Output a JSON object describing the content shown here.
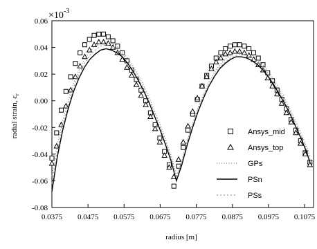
{
  "chart_data": {
    "type": "scatter",
    "scale_label": "×10",
    "scale_exponent": "-3",
    "xlabel": "radius [m]",
    "ylabel": "radial strain, ε",
    "ylabel_subscript": "r",
    "xlim": [
      0.0375,
      0.11
    ],
    "ylim": [
      -0.08,
      0.06
    ],
    "x_ticks": [
      "0.0375",
      "0.0475",
      "0.0575",
      "0.0675",
      "0.0775",
      "0.0875",
      "0.0975",
      "0.1075"
    ],
    "y_ticks": [
      "0.06",
      "0.04",
      "0.02",
      "0.00",
      "-0.02",
      "-0.04",
      "-0.06",
      "-0.08"
    ],
    "x_tick_values": [
      0.0375,
      0.0475,
      0.0575,
      0.0675,
      0.0775,
      0.0875,
      0.0975,
      0.1075
    ],
    "y_tick_values": [
      0.06,
      0.04,
      0.02,
      0.0,
      -0.02,
      -0.04,
      -0.06,
      -0.08
    ],
    "legend_position": "center-right",
    "series": [
      {
        "name": "Ansys_mid",
        "marker": "square",
        "x": [
          0.0375,
          0.0388,
          0.0401,
          0.0414,
          0.0427,
          0.044,
          0.0453,
          0.0466,
          0.0479,
          0.0492,
          0.0505,
          0.0518,
          0.0531,
          0.0544,
          0.0557,
          0.057,
          0.0583,
          0.0596,
          0.0609,
          0.0622,
          0.0635,
          0.0648,
          0.0661,
          0.0674,
          0.0687,
          0.07,
          0.0713,
          0.0726,
          0.0739,
          0.0752,
          0.0765,
          0.0778,
          0.0791,
          0.0804,
          0.0817,
          0.083,
          0.0843,
          0.0856,
          0.0869,
          0.0882,
          0.0895,
          0.0908,
          0.0921,
          0.0934,
          0.0947,
          0.096,
          0.0973,
          0.0986,
          0.0999,
          0.1012,
          0.1025,
          0.1038,
          0.1051,
          0.1064,
          0.1077,
          0.109
        ],
        "values": [
          -0.043,
          -0.024,
          -0.007,
          0.007,
          0.018,
          0.028,
          0.036,
          0.042,
          0.046,
          0.049,
          0.05,
          0.05,
          0.048,
          0.045,
          0.041,
          0.036,
          0.03,
          0.023,
          0.016,
          0.008,
          0.0,
          -0.009,
          -0.018,
          -0.028,
          -0.038,
          -0.048,
          -0.064,
          -0.049,
          -0.035,
          -0.022,
          -0.01,
          0.001,
          0.011,
          0.019,
          0.026,
          0.032,
          0.036,
          0.039,
          0.041,
          0.042,
          0.042,
          0.041,
          0.039,
          0.036,
          0.032,
          0.027,
          0.021,
          0.015,
          0.008,
          0.001,
          -0.006,
          -0.014,
          -0.022,
          -0.03,
          -0.039,
          -0.046
        ]
      },
      {
        "name": "Ansys_top",
        "marker": "triangle",
        "x": [
          0.0375,
          0.0388,
          0.0401,
          0.0414,
          0.0427,
          0.044,
          0.0453,
          0.0466,
          0.0479,
          0.0492,
          0.0505,
          0.0518,
          0.0531,
          0.0544,
          0.0557,
          0.057,
          0.0583,
          0.0596,
          0.0609,
          0.0622,
          0.0635,
          0.0648,
          0.0661,
          0.0674,
          0.0687,
          0.07,
          0.0713,
          0.0726,
          0.0739,
          0.0752,
          0.0765,
          0.0778,
          0.0791,
          0.0804,
          0.0817,
          0.083,
          0.0843,
          0.0856,
          0.0869,
          0.0882,
          0.0895,
          0.0908,
          0.0921,
          0.0934,
          0.0947,
          0.096,
          0.0973,
          0.0986,
          0.0999,
          0.1012,
          0.1025,
          0.1038,
          0.1051,
          0.1064,
          0.1077,
          0.109
        ],
        "values": [
          -0.047,
          -0.034,
          -0.018,
          -0.004,
          0.008,
          0.018,
          0.026,
          0.033,
          0.038,
          0.042,
          0.044,
          0.044,
          0.043,
          0.04,
          0.036,
          0.031,
          0.025,
          0.019,
          0.012,
          0.004,
          -0.003,
          -0.012,
          -0.021,
          -0.031,
          -0.041,
          -0.05,
          -0.057,
          -0.044,
          -0.031,
          -0.019,
          -0.008,
          0.002,
          0.011,
          0.018,
          0.024,
          0.029,
          0.032,
          0.035,
          0.036,
          0.037,
          0.037,
          0.036,
          0.034,
          0.031,
          0.027,
          0.023,
          0.017,
          0.011,
          0.005,
          -0.002,
          -0.009,
          -0.016,
          -0.024,
          -0.032,
          -0.04,
          -0.048
        ]
      },
      {
        "name": "GPs",
        "marker": "dotted-line",
        "x": [
          0.0375,
          0.039,
          0.0405,
          0.042,
          0.0435,
          0.045,
          0.0465,
          0.048,
          0.0495,
          0.051,
          0.0525,
          0.054,
          0.0555,
          0.057,
          0.0585,
          0.06,
          0.0615,
          0.063,
          0.0645,
          0.066,
          0.0675,
          0.069,
          0.0705,
          0.072,
          0.0735,
          0.075,
          0.0765,
          0.078,
          0.0795,
          0.081,
          0.0825,
          0.084,
          0.0855,
          0.087,
          0.0885,
          0.09,
          0.0915,
          0.093,
          0.0945,
          0.096,
          0.0975,
          0.099,
          0.1005,
          0.102,
          0.1035,
          0.105,
          0.1065,
          0.108,
          0.109
        ],
        "values": [
          -0.056,
          -0.033,
          -0.015,
          0.0,
          0.013,
          0.023,
          0.031,
          0.037,
          0.041,
          0.043,
          0.044,
          0.043,
          0.041,
          0.037,
          0.032,
          0.026,
          0.019,
          0.011,
          0.002,
          -0.008,
          -0.018,
          -0.029,
          -0.041,
          -0.056,
          -0.045,
          -0.03,
          -0.017,
          -0.005,
          0.005,
          0.014,
          0.021,
          0.027,
          0.031,
          0.034,
          0.036,
          0.037,
          0.036,
          0.034,
          0.031,
          0.027,
          0.022,
          0.016,
          0.009,
          0.002,
          -0.006,
          -0.015,
          -0.024,
          -0.034,
          -0.041
        ]
      },
      {
        "name": "PSn",
        "marker": "solid-line",
        "x": [
          0.0375,
          0.039,
          0.0405,
          0.042,
          0.0435,
          0.045,
          0.0465,
          0.048,
          0.0495,
          0.051,
          0.0525,
          0.054,
          0.0555,
          0.057,
          0.0585,
          0.06,
          0.0615,
          0.063,
          0.0645,
          0.066,
          0.0675,
          0.069,
          0.0705,
          0.072,
          0.0735,
          0.075,
          0.0765,
          0.078,
          0.0795,
          0.081,
          0.0825,
          0.084,
          0.0855,
          0.087,
          0.0885,
          0.09,
          0.0915,
          0.093,
          0.0945,
          0.096,
          0.0975,
          0.099,
          0.1005,
          0.102,
          0.1035,
          0.105,
          0.1065,
          0.108,
          0.109
        ],
        "values": [
          -0.068,
          -0.042,
          -0.022,
          -0.006,
          0.007,
          0.017,
          0.025,
          0.031,
          0.035,
          0.038,
          0.039,
          0.038,
          0.036,
          0.033,
          0.028,
          0.022,
          0.015,
          0.007,
          -0.002,
          -0.012,
          -0.022,
          -0.033,
          -0.045,
          -0.06,
          -0.048,
          -0.033,
          -0.02,
          -0.008,
          0.002,
          0.011,
          0.018,
          0.024,
          0.028,
          0.031,
          0.033,
          0.033,
          0.032,
          0.03,
          0.027,
          0.023,
          0.018,
          0.012,
          0.005,
          -0.002,
          -0.01,
          -0.019,
          -0.028,
          -0.038,
          -0.046
        ]
      },
      {
        "name": "PSs",
        "marker": "dotted-line",
        "x": [
          0.0375,
          0.039,
          0.0405,
          0.042,
          0.0435,
          0.045,
          0.0465,
          0.048,
          0.0495,
          0.051,
          0.0525,
          0.054,
          0.0555,
          0.057,
          0.0585,
          0.06,
          0.0615,
          0.063,
          0.0645,
          0.066,
          0.0675,
          0.069,
          0.0705,
          0.072,
          0.0735,
          0.075,
          0.0765,
          0.078,
          0.0795,
          0.081,
          0.0825,
          0.084,
          0.0855,
          0.087,
          0.0885,
          0.09,
          0.0915,
          0.093,
          0.0945,
          0.096,
          0.0975,
          0.099,
          0.1005,
          0.102,
          0.1035,
          0.105,
          0.1065,
          0.108,
          0.109
        ],
        "values": [
          -0.062,
          -0.038,
          -0.019,
          -0.003,
          0.01,
          0.02,
          0.028,
          0.034,
          0.038,
          0.041,
          0.042,
          0.041,
          0.039,
          0.035,
          0.03,
          0.024,
          0.017,
          0.009,
          0.0,
          -0.01,
          -0.02,
          -0.031,
          -0.043,
          -0.058,
          -0.046,
          -0.031,
          -0.018,
          -0.006,
          0.004,
          0.012,
          0.019,
          0.025,
          0.029,
          0.032,
          0.034,
          0.035,
          0.034,
          0.032,
          0.029,
          0.025,
          0.02,
          0.014,
          0.007,
          0.0,
          -0.008,
          -0.017,
          -0.026,
          -0.036,
          -0.044
        ]
      }
    ]
  }
}
